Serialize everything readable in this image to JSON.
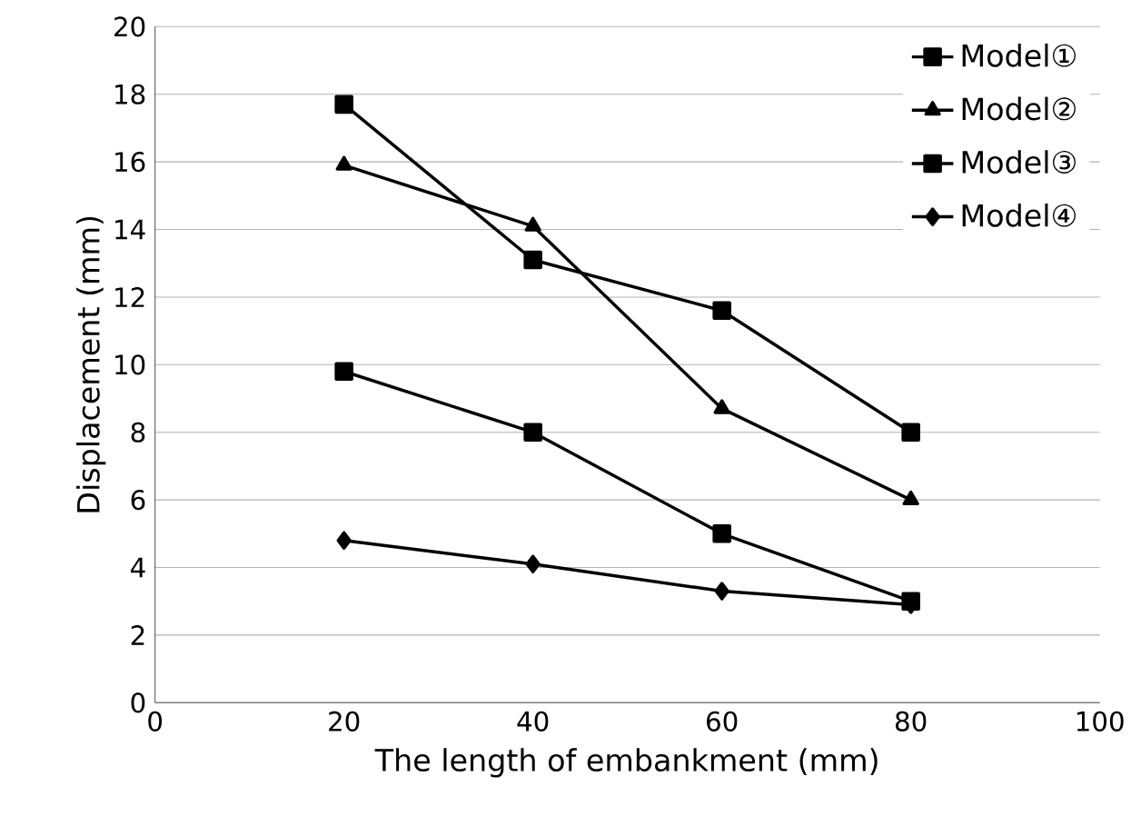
{
  "chart_data": {
    "type": "line",
    "xlabel": "The length of embankment (mm)",
    "ylabel": "Displacement (mm)",
    "x": [
      20,
      40,
      60,
      80
    ],
    "series": [
      {
        "name": "Model①",
        "color": "#000000",
        "marker": "square",
        "values": [
          17.7,
          13.1,
          11.6,
          8.0
        ]
      },
      {
        "name": "Model②",
        "color": "#000000",
        "marker": "triangle",
        "values": [
          15.9,
          14.1,
          8.7,
          6.0
        ]
      },
      {
        "name": "Model③",
        "color": "#000000",
        "marker": "square",
        "values": [
          9.8,
          8.0,
          5.0,
          3.0
        ]
      },
      {
        "name": "Model④",
        "color": "#000000",
        "marker": "diamond",
        "values": [
          4.8,
          4.1,
          3.3,
          2.9
        ]
      }
    ],
    "xlim": [
      0,
      100
    ],
    "xticks": [
      0,
      20,
      40,
      60,
      80,
      100
    ],
    "ylim": [
      0,
      20
    ],
    "yticks": [
      0,
      2,
      4,
      6,
      8,
      10,
      12,
      14,
      16,
      18,
      20
    ],
    "grid": "y",
    "legend": "top right",
    "line_style": "solid"
  }
}
